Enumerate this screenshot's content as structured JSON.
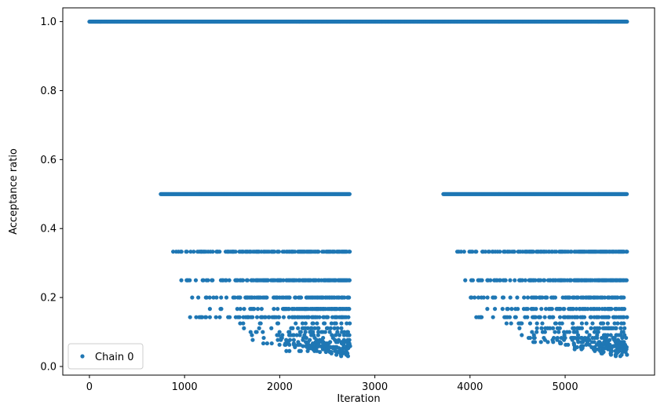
{
  "chart_data": {
    "type": "scatter",
    "xlabel": "Iteration",
    "ylabel": "Acceptance ratio",
    "xlim": [
      -280,
      5940
    ],
    "ylim": [
      -0.025,
      1.04
    ],
    "x_ticks": [
      0,
      1000,
      2000,
      3000,
      4000,
      5000
    ],
    "y_ticks": [
      0.0,
      0.2,
      0.4,
      0.6,
      0.8,
      1.0
    ],
    "grid": false,
    "legend_position": "lower-left",
    "series": [
      {
        "name": "Chain 0",
        "color": "#1f77b4",
        "marker": "circle",
        "segments": [
          {
            "x_start": 0,
            "x_end": 2740,
            "levels": [
              {
                "y": 1.0,
                "from": 0,
                "to": 2740
              },
              {
                "y": 0.5,
                "from": 750,
                "to": 2740
              },
              {
                "y": 0.333,
                "from": 880,
                "to": 2740
              },
              {
                "y": 0.25,
                "from": 950,
                "to": 2740
              },
              {
                "y": 0.2,
                "from": 1080,
                "to": 2740
              },
              {
                "y": 0.167,
                "from": 1250,
                "to": 2740
              },
              {
                "y": 0.143,
                "from": 1050,
                "to": 2740
              },
              {
                "y": 0.125,
                "from": 1520,
                "to": 2740
              },
              {
                "y": 0.111,
                "from": 1600,
                "to": 2740
              },
              {
                "y": 0.1,
                "from": 1630,
                "to": 2740
              },
              {
                "y": 0.091,
                "from": 1700,
                "to": 2740
              },
              {
                "y": 0.083,
                "from": 1800,
                "to": 2740
              },
              {
                "y": 0.077,
                "from": 1700,
                "to": 2740
              },
              {
                "y": 0.071,
                "from": 1850,
                "to": 2740
              },
              {
                "y": 0.067,
                "from": 1780,
                "to": 2740
              },
              {
                "y": 0.063,
                "from": 1950,
                "to": 2740
              },
              {
                "y": 0.059,
                "from": 2100,
                "to": 2740
              },
              {
                "y": 0.056,
                "from": 2000,
                "to": 2740
              },
              {
                "y": 0.053,
                "from": 2200,
                "to": 2740
              },
              {
                "y": 0.05,
                "from": 2150,
                "to": 2740
              },
              {
                "y": 0.045,
                "from": 1950,
                "to": 2740
              },
              {
                "y": 0.042,
                "from": 2350,
                "to": 2740
              },
              {
                "y": 0.038,
                "from": 2400,
                "to": 2740
              },
              {
                "y": 0.034,
                "from": 2500,
                "to": 2740
              },
              {
                "y": 0.03,
                "from": 2550,
                "to": 2740
              }
            ]
          },
          {
            "x_start": 2740,
            "x_end": 5650,
            "levels": [
              {
                "y": 1.0,
                "from": 2740,
                "to": 5650
              },
              {
                "y": 0.5,
                "from": 3720,
                "to": 5650
              },
              {
                "y": 0.333,
                "from": 3850,
                "to": 5650
              },
              {
                "y": 0.25,
                "from": 3950,
                "to": 5650
              },
              {
                "y": 0.2,
                "from": 3960,
                "to": 5650
              },
              {
                "y": 0.167,
                "from": 4150,
                "to": 5650
              },
              {
                "y": 0.143,
                "from": 4050,
                "to": 5650
              },
              {
                "y": 0.125,
                "from": 4200,
                "to": 5650
              },
              {
                "y": 0.111,
                "from": 4400,
                "to": 5650
              },
              {
                "y": 0.1,
                "from": 4300,
                "to": 5650
              },
              {
                "y": 0.091,
                "from": 4400,
                "to": 5650
              },
              {
                "y": 0.083,
                "from": 4600,
                "to": 5650
              },
              {
                "y": 0.077,
                "from": 4700,
                "to": 5650
              },
              {
                "y": 0.071,
                "from": 4650,
                "to": 5650
              },
              {
                "y": 0.067,
                "from": 4900,
                "to": 5650
              },
              {
                "y": 0.063,
                "from": 4750,
                "to": 5650
              },
              {
                "y": 0.059,
                "from": 5050,
                "to": 5650
              },
              {
                "y": 0.056,
                "from": 4950,
                "to": 5650
              },
              {
                "y": 0.053,
                "from": 5150,
                "to": 5650
              },
              {
                "y": 0.05,
                "from": 5100,
                "to": 5650
              },
              {
                "y": 0.045,
                "from": 5200,
                "to": 5650
              },
              {
                "y": 0.042,
                "from": 5300,
                "to": 5650
              },
              {
                "y": 0.038,
                "from": 5350,
                "to": 5650
              },
              {
                "y": 0.034,
                "from": 5450,
                "to": 5650
              },
              {
                "y": 0.03,
                "from": 5500,
                "to": 5650
              }
            ]
          }
        ]
      }
    ]
  }
}
